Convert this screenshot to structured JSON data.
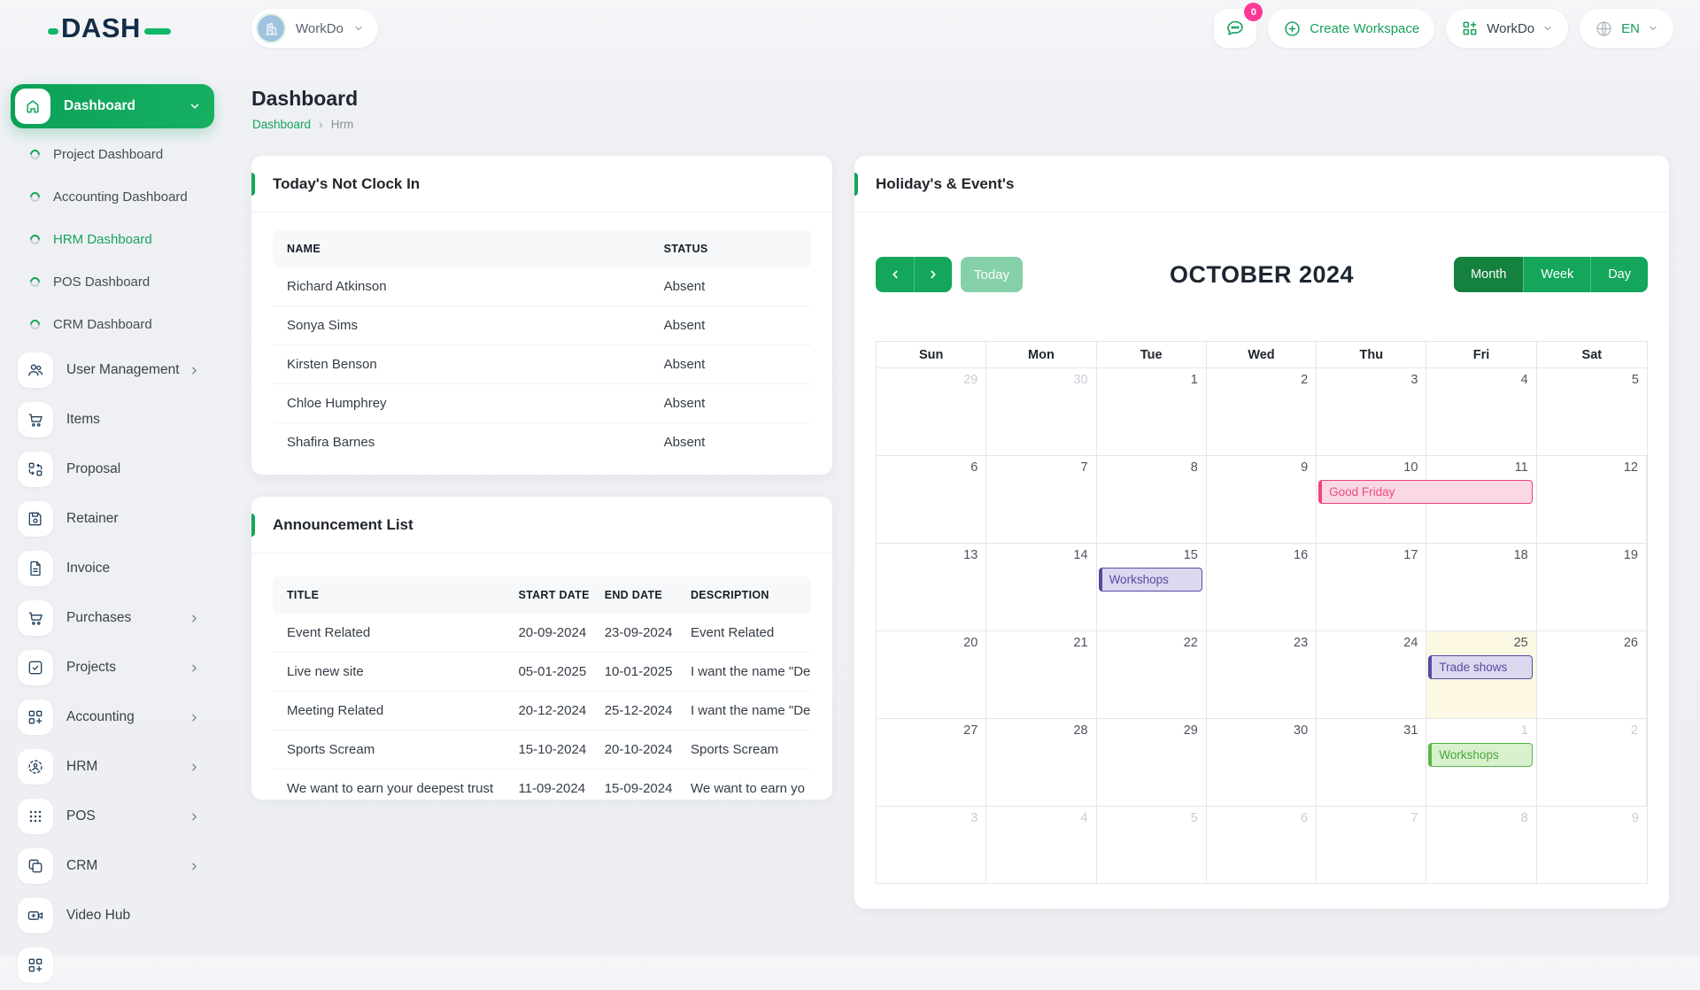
{
  "theme": {
    "green": "#14a65a",
    "green_dark": "#15813f",
    "green_light": "#85d0a8",
    "navy": "#132c47",
    "badge_pink": "#fd3995",
    "event_pink": "#f0437c",
    "event_purple": "#574aa1",
    "event_green": "#57b845",
    "today_yellow": "#fcf8e3"
  },
  "header": {
    "logo_text": "DASH",
    "workspace_name": "WorkDo",
    "chat_badge": "0",
    "create_workspace_label": "Create Workspace",
    "workdo_label": "WorkDo",
    "language_label": "EN"
  },
  "sidebar": {
    "active_label": "Dashboard",
    "dashboards": [
      {
        "label": "Project Dashboard"
      },
      {
        "label": "Accounting Dashboard"
      },
      {
        "label": "HRM Dashboard",
        "active": true
      },
      {
        "label": "POS Dashboard"
      },
      {
        "label": "CRM Dashboard"
      }
    ],
    "items": [
      {
        "label": "User Management",
        "icon": "users",
        "chevron": true
      },
      {
        "label": "Items",
        "icon": "cart"
      },
      {
        "label": "Proposal",
        "icon": "swap"
      },
      {
        "label": "Retainer",
        "icon": "save"
      },
      {
        "label": "Invoice",
        "icon": "file"
      },
      {
        "label": "Purchases",
        "icon": "cart",
        "chevron": true
      },
      {
        "label": "Projects",
        "icon": "checksq",
        "chevron": true
      },
      {
        "label": "Accounting",
        "icon": "gridplus",
        "chevron": true
      },
      {
        "label": "HRM",
        "icon": "userscan",
        "chevron": true
      },
      {
        "label": "POS",
        "icon": "dots",
        "chevron": true
      },
      {
        "label": "CRM",
        "icon": "copy",
        "chevron": true
      },
      {
        "label": "Video Hub",
        "icon": "video"
      },
      {
        "label": "",
        "icon": "gridplus",
        "partial": true
      }
    ]
  },
  "page": {
    "title": "Dashboard",
    "breadcrumb_link": "Dashboard",
    "breadcrumb_sep": "›",
    "breadcrumb_current": "Hrm"
  },
  "clockin": {
    "title": "Today's Not Clock In",
    "columns": [
      "NAME",
      "STATUS"
    ],
    "rows": [
      [
        "Richard Atkinson",
        "Absent"
      ],
      [
        "Sonya Sims",
        "Absent"
      ],
      [
        "Kirsten Benson",
        "Absent"
      ],
      [
        "Chloe Humphrey",
        "Absent"
      ],
      [
        "Shafira Barnes",
        "Absent"
      ]
    ]
  },
  "announcements": {
    "title": "Announcement List",
    "columns": [
      "TITLE",
      "START DATE",
      "END DATE",
      "DESCRIPTION"
    ],
    "rows": [
      [
        "Event Related",
        "20-09-2024",
        "23-09-2024",
        "Event Related"
      ],
      [
        "Live new site",
        "05-01-2025",
        "10-01-2025",
        "I want the name \"De"
      ],
      [
        "Meeting Related",
        "20-12-2024",
        "25-12-2024",
        "I want the name \"De"
      ],
      [
        "Sports Scream",
        "15-10-2024",
        "20-10-2024",
        "Sports Scream"
      ],
      [
        "We want to earn your deepest trust",
        "11-09-2024",
        "15-09-2024",
        "We want to earn yo"
      ]
    ]
  },
  "calendar": {
    "title": "Holiday's & Event's",
    "today_label": "Today",
    "month_title": "OCTOBER 2024",
    "views": [
      "Month",
      "Week",
      "Day"
    ],
    "active_view": "Month",
    "day_headers": [
      "Sun",
      "Mon",
      "Tue",
      "Wed",
      "Thu",
      "Fri",
      "Sat"
    ],
    "weeks": [
      [
        {
          "d": 29,
          "muted": true
        },
        {
          "d": 30,
          "muted": true
        },
        {
          "d": 1
        },
        {
          "d": 2
        },
        {
          "d": 3
        },
        {
          "d": 4
        },
        {
          "d": 5
        }
      ],
      [
        {
          "d": 6
        },
        {
          "d": 7
        },
        {
          "d": 8
        },
        {
          "d": 9
        },
        {
          "d": 10
        },
        {
          "d": 11
        },
        {
          "d": 12
        }
      ],
      [
        {
          "d": 13
        },
        {
          "d": 14
        },
        {
          "d": 15
        },
        {
          "d": 16
        },
        {
          "d": 17
        },
        {
          "d": 18
        },
        {
          "d": 19
        }
      ],
      [
        {
          "d": 20
        },
        {
          "d": 21
        },
        {
          "d": 22
        },
        {
          "d": 23
        },
        {
          "d": 24
        },
        {
          "d": 25
        },
        {
          "d": 26
        }
      ],
      [
        {
          "d": 27
        },
        {
          "d": 28
        },
        {
          "d": 29
        },
        {
          "d": 30
        },
        {
          "d": 31
        },
        {
          "d": 1,
          "muted": true
        },
        {
          "d": 2,
          "muted": true
        }
      ],
      [
        {
          "d": 3,
          "muted": true
        },
        {
          "d": 4,
          "muted": true
        },
        {
          "d": 5,
          "muted": true
        },
        {
          "d": 6,
          "muted": true
        },
        {
          "d": 7,
          "muted": true
        },
        {
          "d": 8,
          "muted": true
        },
        {
          "d": 9,
          "muted": true
        }
      ]
    ],
    "today_cell": {
      "week": 3,
      "col": 5
    },
    "events": [
      {
        "label": "Good Friday",
        "week": 1,
        "col": 4,
        "span": 2,
        "variant": "pink"
      },
      {
        "label": "Workshops",
        "week": 2,
        "col": 2,
        "span": 1,
        "variant": "purple"
      },
      {
        "label": "Trade shows",
        "week": 3,
        "col": 5,
        "span": 1,
        "variant": "purple"
      },
      {
        "label": "Workshops",
        "week": 4,
        "col": 5,
        "span": 1,
        "variant": "green"
      }
    ]
  }
}
